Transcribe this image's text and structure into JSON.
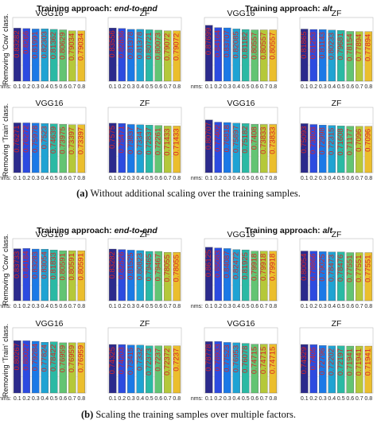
{
  "figure": {
    "captions": [
      {
        "tag": "(a)",
        "text": "Without additional scaling over the training samples."
      },
      {
        "tag": "(b)",
        "text": "Scaling the training samples over multiple factors."
      }
    ],
    "approach_prefix": "Training approach:",
    "approaches": [
      "end-to-end",
      "alt"
    ],
    "row_labels": [
      "Removing 'Cow' class.",
      "Removing 'Train' class."
    ],
    "x_axis_label": "nms:",
    "colors": [
      "#2b2a8c",
      "#2c4be0",
      "#1b79e6",
      "#1fa3d3",
      "#2ab9a4",
      "#63c473",
      "#b5c83a",
      "#ebbe2d",
      "#f6df27",
      "#fafa0e"
    ],
    "value_label_color": "#d62728"
  },
  "chart_data": [
    {
      "type": "bar",
      "panel": "a",
      "approach": "end-to-end",
      "model": "VGG16",
      "removed_class": "Cow",
      "categories": [
        "0.1",
        "0.2",
        "0.3",
        "0.4",
        "0.5",
        "0.6",
        "0.7",
        "0.8"
      ],
      "values": [
        0.83282,
        0.8266,
        0.81991,
        0.82303,
        0.81362,
        0.80629,
        0.79034,
        0.79034
      ],
      "ylim": [
        0,
        1
      ]
    },
    {
      "type": "bar",
      "panel": "a",
      "approach": "end-to-end",
      "model": "ZF",
      "removed_class": "Cow",
      "categories": [
        "0.1",
        "0.2",
        "0.3",
        "0.4",
        "0.5",
        "0.6",
        "0.7",
        "0.8"
      ],
      "values": [
        0.83556,
        0.82836,
        0.81378,
        0.81378,
        0.80721,
        0.80073,
        0.79072,
        0.79072
      ],
      "ylim": [
        0,
        1
      ]
    },
    {
      "type": "bar",
      "panel": "a",
      "approach": "alt",
      "model": "VGG16",
      "removed_class": "Cow",
      "categories": [
        "0.1",
        "0.2",
        "0.3",
        "0.4",
        "0.5",
        "0.6",
        "0.7",
        "0.8"
      ],
      "values": [
        0.87699,
        0.84164,
        0.83707,
        0.82085,
        0.81182,
        0.80557,
        0.80557,
        0.80557
      ],
      "ylim": [
        0,
        1
      ]
    },
    {
      "type": "bar",
      "panel": "a",
      "approach": "alt",
      "model": "ZF",
      "removed_class": "Cow",
      "categories": [
        "0.1",
        "0.2",
        "0.3",
        "0.4",
        "0.5",
        "0.6",
        "0.7",
        "0.8"
      ],
      "values": [
        0.81865,
        0.81253,
        0.81143,
        0.80233,
        0.79681,
        0.78154,
        0.77894,
        0.77894
      ],
      "ylim": [
        0,
        1
      ]
    },
    {
      "type": "bar",
      "panel": "a",
      "approach": "end-to-end",
      "model": "VGG16",
      "removed_class": "Train",
      "categories": [
        "0.1",
        "0.2",
        "0.3",
        "0.4",
        "0.5",
        "0.6",
        "0.7",
        "0.8"
      ],
      "values": [
        0.76271,
        0.76272,
        0.75978,
        0.7523,
        0.74639,
        0.73975,
        0.73397,
        0.73397
      ],
      "ylim": [
        0,
        1
      ]
    },
    {
      "type": "bar",
      "panel": "a",
      "approach": "end-to-end",
      "model": "ZF",
      "removed_class": "Train",
      "categories": [
        "0.1",
        "0.2",
        "0.3",
        "0.4",
        "0.5",
        "0.6",
        "0.7",
        "0.8"
      ],
      "values": [
        0.7575,
        0.75471,
        0.73837,
        0.73347,
        0.72837,
        0.72261,
        0.71433,
        0.71433
      ],
      "ylim": [
        0,
        1
      ]
    },
    {
      "type": "bar",
      "panel": "a",
      "approach": "alt",
      "model": "VGG16",
      "removed_class": "Train",
      "categories": [
        "0.1",
        "0.2",
        "0.3",
        "0.4",
        "0.5",
        "0.6",
        "0.7",
        "0.8"
      ],
      "values": [
        0.80707,
        0.77402,
        0.76818,
        0.75897,
        0.75182,
        0.7408,
        0.73833,
        0.73833
      ],
      "ylim": [
        0,
        1
      ]
    },
    {
      "type": "bar",
      "panel": "a",
      "approach": "alt",
      "model": "ZF",
      "removed_class": "Train",
      "categories": [
        "0.1",
        "0.2",
        "0.3",
        "0.4",
        "0.5",
        "0.6",
        "0.7",
        "0.8"
      ],
      "values": [
        0.75093,
        0.73803,
        0.72998,
        0.72315,
        0.71608,
        0.71177,
        0.7096,
        0.7096
      ],
      "ylim": [
        0,
        1
      ]
    },
    {
      "type": "bar",
      "panel": "b",
      "approach": "end-to-end",
      "model": "VGG16",
      "removed_class": "Cow",
      "categories": [
        "0.1",
        "0.2",
        "0.3",
        "0.4",
        "0.5",
        "0.6",
        "0.7",
        "0.8"
      ],
      "values": [
        0.83733,
        0.84184,
        0.83283,
        0.83054,
        0.81833,
        0.80591,
        0.80591,
        0.80591
      ],
      "ylim": [
        0,
        1
      ]
    },
    {
      "type": "bar",
      "panel": "b",
      "approach": "end-to-end",
      "model": "ZF",
      "removed_class": "Cow",
      "categories": [
        "0.1",
        "0.2",
        "0.3",
        "0.4",
        "0.5",
        "0.6",
        "0.7",
        "0.8"
      ],
      "values": [
        0.83282,
        0.82526,
        0.81525,
        0.80823,
        0.79465,
        0.79467,
        0.78055,
        0.78055
      ],
      "ylim": [
        0,
        1
      ]
    },
    {
      "type": "bar",
      "panel": "b",
      "approach": "alt",
      "model": "VGG16",
      "removed_class": "Cow",
      "categories": [
        "0.1",
        "0.2",
        "0.3",
        "0.4",
        "0.5",
        "0.6",
        "0.7",
        "0.8"
      ],
      "values": [
        0.86125,
        0.85083,
        0.84087,
        0.82472,
        0.81925,
        0.79918,
        0.79918,
        0.79918
      ],
      "ylim": [
        0,
        1
      ]
    },
    {
      "type": "bar",
      "panel": "b",
      "approach": "alt",
      "model": "ZF",
      "removed_class": "Cow",
      "categories": [
        "0.1",
        "0.2",
        "0.3",
        "0.4",
        "0.5",
        "0.6",
        "0.7",
        "0.8"
      ],
      "values": [
        0.80054,
        0.79866,
        0.79025,
        0.78473,
        0.78476,
        0.77551,
        0.77551,
        0.77551
      ],
      "ylim": [
        0,
        1
      ]
    },
    {
      "type": "bar",
      "panel": "b",
      "approach": "end-to-end",
      "model": "VGG16",
      "removed_class": "Train",
      "categories": [
        "0.1",
        "0.2",
        "0.3",
        "0.4",
        "0.5",
        "0.6",
        "0.7",
        "0.8"
      ],
      "values": [
        0.80267,
        0.80027,
        0.79284,
        0.77824,
        0.78422,
        0.76959,
        0.76959,
        0.76959
      ],
      "ylim": [
        0,
        1
      ]
    },
    {
      "type": "bar",
      "panel": "b",
      "approach": "end-to-end",
      "model": "ZF",
      "removed_class": "Train",
      "categories": [
        "0.1",
        "0.2",
        "0.3",
        "0.4",
        "0.5",
        "0.6",
        "0.7",
        "0.8"
      ],
      "values": [
        0.74325,
        0.74203,
        0.73415,
        0.7332,
        0.72373,
        0.7237,
        0.72372,
        0.7237
      ],
      "ylim": [
        0,
        1
      ]
    },
    {
      "type": "bar",
      "panel": "b",
      "approach": "alt",
      "model": "VGG16",
      "removed_class": "Train",
      "categories": [
        "0.1",
        "0.2",
        "0.3",
        "0.4",
        "0.5",
        "0.6",
        "0.7",
        "0.8"
      ],
      "values": [
        0.78778,
        0.78933,
        0.77523,
        0.76953,
        0.76078,
        0.74715,
        0.74715,
        0.74715
      ],
      "ylim": [
        0,
        1
      ]
    },
    {
      "type": "bar",
      "panel": "b",
      "approach": "alt",
      "model": "ZF",
      "removed_class": "Train",
      "categories": [
        "0.1",
        "0.2",
        "0.3",
        "0.4",
        "0.5",
        "0.6",
        "0.7",
        "0.8"
      ],
      "values": [
        0.74329,
        0.7405,
        0.72796,
        0.72202,
        0.72197,
        0.71941,
        0.71941,
        0.71941
      ],
      "ylim": [
        0,
        1
      ]
    }
  ]
}
